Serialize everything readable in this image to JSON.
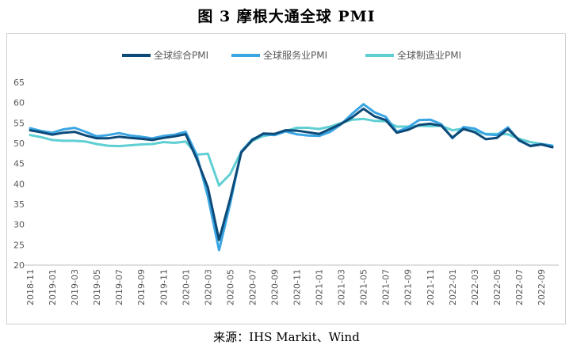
{
  "title": "图 3  摩根大通全球 PMI",
  "source": "来源：IHS Markit、Wind",
  "chart_data": {
    "type": "line",
    "title": "图 3  摩根大通全球 PMI",
    "xlabel": "",
    "ylabel": "",
    "ylim": [
      20,
      65
    ],
    "yticks": [
      20,
      25,
      30,
      35,
      40,
      45,
      50,
      55,
      60,
      65
    ],
    "grid": false,
    "legend_position": "top-center",
    "x": [
      "2018-11",
      "2018-12",
      "2019-01",
      "2019-02",
      "2019-03",
      "2019-04",
      "2019-05",
      "2019-06",
      "2019-07",
      "2019-08",
      "2019-09",
      "2019-10",
      "2019-11",
      "2019-12",
      "2020-01",
      "2020-02",
      "2020-03",
      "2020-04",
      "2020-05",
      "2020-06",
      "2020-07",
      "2020-08",
      "2020-09",
      "2020-10",
      "2020-11",
      "2020-12",
      "2021-01",
      "2021-02",
      "2021-03",
      "2021-04",
      "2021-05",
      "2021-06",
      "2021-07",
      "2021-08",
      "2021-09",
      "2021-10",
      "2021-11",
      "2021-12",
      "2022-01",
      "2022-02",
      "2022-03",
      "2022-04",
      "2022-05",
      "2022-06",
      "2022-07",
      "2022-08",
      "2022-09",
      "2022-10"
    ],
    "xtick_labels": [
      "2018-11",
      "2019-01",
      "2019-03",
      "2019-05",
      "2019-07",
      "2019-09",
      "2019-11",
      "2020-01",
      "2020-03",
      "2020-05",
      "2020-07",
      "2020-09",
      "2020-11",
      "2021-01",
      "2021-03",
      "2021-05",
      "2021-07",
      "2021-09",
      "2021-11",
      "2022-01",
      "2022-03",
      "2022-05",
      "2022-07",
      "2022-09"
    ],
    "series": [
      {
        "name": "全球综合PMI",
        "color": "#0d4a78",
        "width": 3,
        "values": [
          53.2,
          52.7,
          52.1,
          52.6,
          52.8,
          51.9,
          51.2,
          51.2,
          51.6,
          51.3,
          51.1,
          50.8,
          51.3,
          51.7,
          52.2,
          46.1,
          39.1,
          26.2,
          36.3,
          47.7,
          50.8,
          52.4,
          52.3,
          53.2,
          53.1,
          52.7,
          52.3,
          53.5,
          54.8,
          56.4,
          58.5,
          56.6,
          55.7,
          52.6,
          53.3,
          54.5,
          54.8,
          54.3,
          51.4,
          53.5,
          52.7,
          51.0,
          51.3,
          53.5,
          50.8,
          49.3,
          49.7,
          49.0
        ]
      },
      {
        "name": "全球服务业PMI",
        "color": "#3aa5e3",
        "width": 3,
        "values": [
          53.7,
          53.0,
          52.6,
          53.4,
          53.8,
          52.8,
          51.7,
          52.0,
          52.5,
          51.9,
          51.6,
          51.2,
          51.8,
          52.1,
          52.8,
          47.1,
          36.9,
          23.7,
          35.1,
          48.0,
          51.0,
          52.2,
          52.0,
          52.9,
          52.2,
          51.9,
          51.8,
          52.8,
          54.7,
          57.3,
          59.6,
          57.6,
          56.5,
          52.8,
          53.9,
          55.7,
          55.8,
          54.7,
          51.2,
          54.0,
          53.6,
          52.2,
          52.0,
          53.9,
          50.6,
          49.4,
          49.8,
          49.4
        ]
      },
      {
        "name": "全球制造业PMI",
        "color": "#5fcfd3",
        "width": 3,
        "values": [
          52.0,
          51.5,
          50.8,
          50.6,
          50.6,
          50.4,
          49.8,
          49.4,
          49.3,
          49.5,
          49.7,
          49.8,
          50.3,
          50.1,
          50.4,
          47.2,
          47.4,
          39.6,
          42.4,
          47.9,
          50.6,
          51.8,
          52.2,
          53.0,
          53.8,
          53.8,
          53.5,
          54.1,
          55.0,
          55.8,
          56.0,
          55.5,
          55.4,
          54.1,
          54.1,
          54.3,
          54.2,
          54.3,
          53.2,
          53.6,
          52.9,
          52.3,
          52.3,
          52.2,
          51.1,
          50.3,
          49.8,
          49.4
        ]
      }
    ]
  }
}
